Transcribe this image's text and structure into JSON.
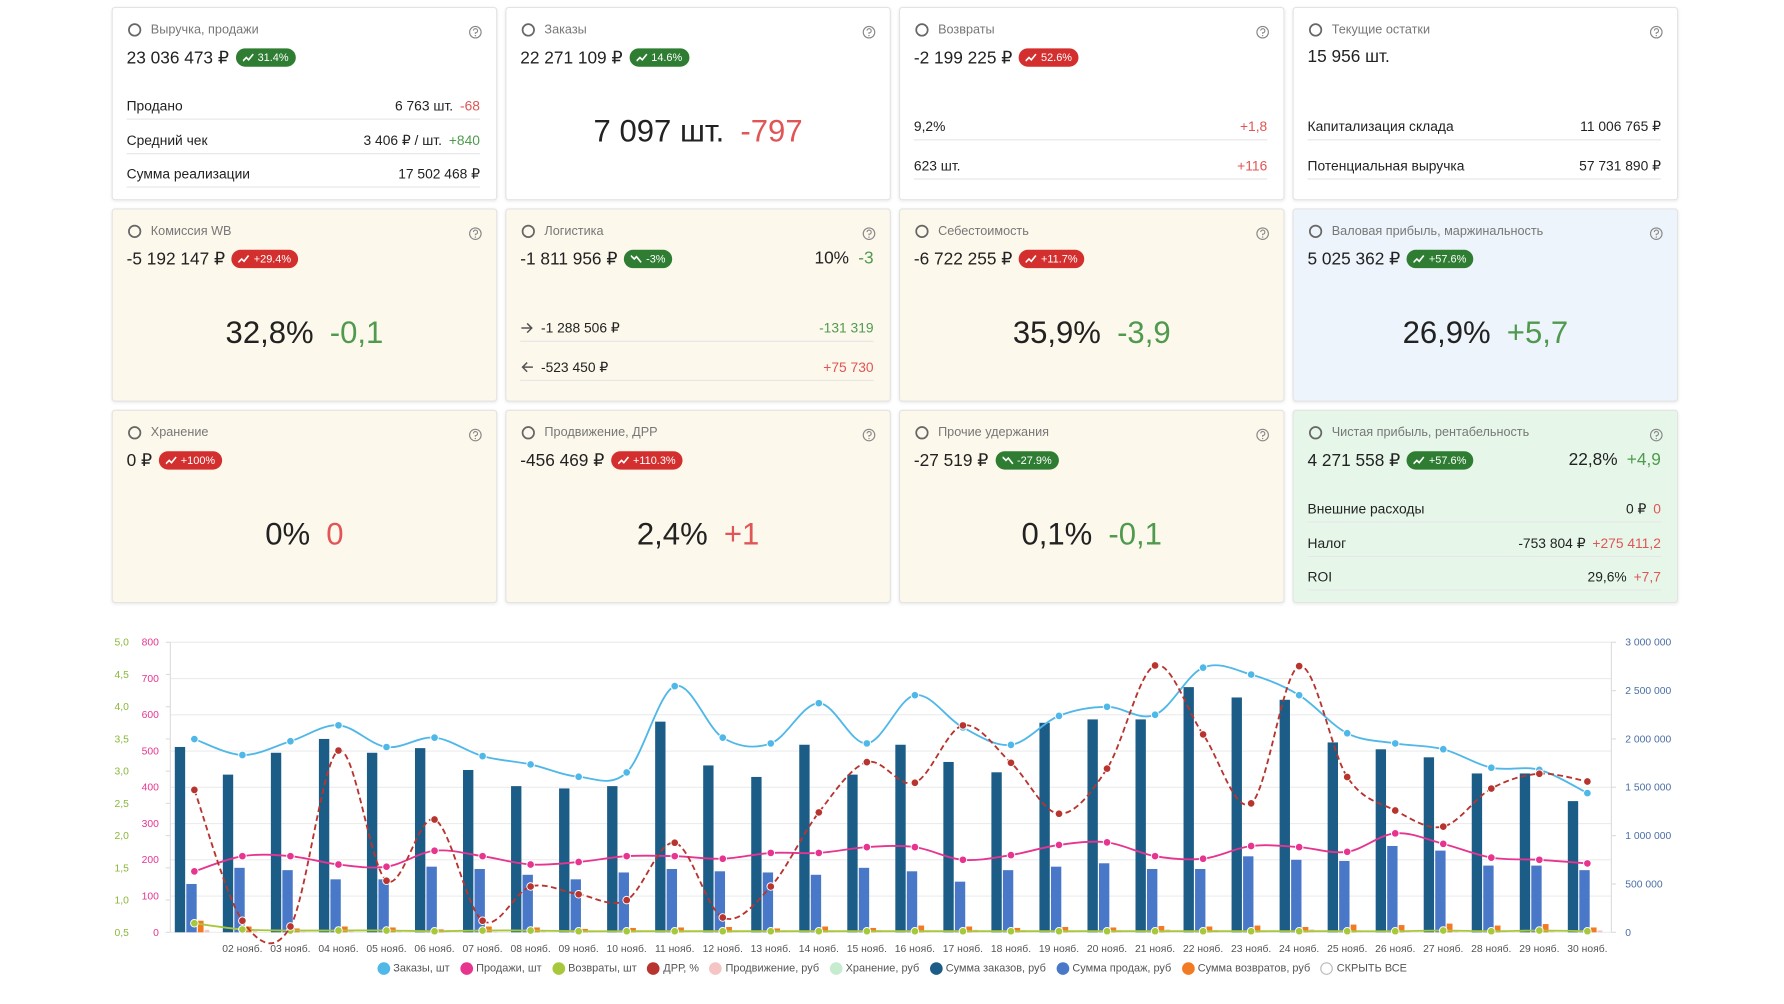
{
  "cards": [
    {
      "title": "Выручка, продажи",
      "value": "23 036 473 ₽",
      "badge": {
        "text": "31.4%",
        "tone": "green",
        "trend": "up"
      },
      "color": "#ffffff",
      "rows": [
        {
          "label": "Продано",
          "value": "6 763 шт.",
          "delta": "-68",
          "tone": "red"
        },
        {
          "label": "Средний чек",
          "value": "3 406 ₽ / шт.",
          "delta": "+840",
          "tone": "green"
        },
        {
          "label": "Сумма реализации",
          "value": "17 502 468 ₽"
        }
      ]
    },
    {
      "title": "Заказы",
      "value": "22 271 109 ₽",
      "badge": {
        "text": "14.6%",
        "tone": "green",
        "trend": "up"
      },
      "color": "#ffffff",
      "big": {
        "value": "7 097 шт.",
        "delta": "-797",
        "tone": "red"
      }
    },
    {
      "title": "Возвраты",
      "value": "-2 199 225 ₽",
      "badge": {
        "text": "52.6%",
        "tone": "red",
        "trend": "up"
      },
      "color": "#ffffff",
      "rows": [
        {
          "label": "9,2%",
          "delta": "+1,8",
          "tone": "red"
        },
        {
          "label": "623 шт.",
          "delta": "+116",
          "tone": "red"
        }
      ]
    },
    {
      "title": "Текущие остатки",
      "value": "15 956 шт.",
      "color": "#ffffff",
      "rows": [
        {
          "label": "Капитализация склада",
          "value": "11 006 765 ₽"
        },
        {
          "label": "Потенциальная выручка",
          "value": "57 731 890 ₽"
        }
      ]
    },
    {
      "title": "Комиссия WB",
      "value": "-5 192 147 ₽",
      "badge": {
        "text": "+29.4%",
        "tone": "red",
        "trend": "up"
      },
      "color": "#fdf8ec",
      "big": {
        "value": "32,8%",
        "delta": "-0,1",
        "tone": "green"
      }
    },
    {
      "title": "Логистика",
      "value": "-1 811 956 ₽",
      "badge": {
        "text": "-3%",
        "tone": "green",
        "trend": "down"
      },
      "color": "#fdf8ec",
      "side": {
        "value": "10%",
        "delta": "-3",
        "tone": "green"
      },
      "rows": [
        {
          "label": "-1 288 506 ₽",
          "arrow": "right",
          "delta": "-131 319",
          "tone": "green"
        },
        {
          "label": "-523 450 ₽",
          "arrow": "left",
          "delta": "+75 730",
          "tone": "red"
        }
      ]
    },
    {
      "title": "Себестоимость",
      "value": "-6 722 255 ₽",
      "badge": {
        "text": "+11.7%",
        "tone": "red",
        "trend": "up"
      },
      "color": "#fdf8ec",
      "big": {
        "value": "35,9%",
        "delta": "-3,9",
        "tone": "green"
      }
    },
    {
      "title": "Валовая прибыль, маржинальность",
      "value": "5 025 362 ₽",
      "badge": {
        "text": "+57.6%",
        "tone": "green",
        "trend": "up"
      },
      "color": "#eef4fb",
      "big": {
        "value": "26,9%",
        "delta": "+5,7",
        "tone": "green"
      }
    },
    {
      "title": "Хранение",
      "value": "0 ₽",
      "badge": {
        "text": "+100%",
        "tone": "red",
        "trend": "up"
      },
      "color": "#fdf8ec",
      "big": {
        "value": "0%",
        "delta": "0",
        "tone": "red"
      }
    },
    {
      "title": "Продвижение, ДРР",
      "value": "-456 469 ₽",
      "badge": {
        "text": "+110.3%",
        "tone": "red",
        "trend": "up"
      },
      "color": "#fdf8ec",
      "big": {
        "value": "2,4%",
        "delta": "+1",
        "tone": "red"
      }
    },
    {
      "title": "Прочие удержания",
      "value": "-27 519 ₽",
      "badge": {
        "text": "-27.9%",
        "tone": "green",
        "trend": "down"
      },
      "color": "#fdf8ec",
      "big": {
        "value": "0,1%",
        "delta": "-0,1",
        "tone": "green"
      }
    },
    {
      "title": "Чистая прибыль, рентабельность",
      "value": "4 271 558 ₽",
      "badge": {
        "text": "+57.6%",
        "tone": "green",
        "trend": "up"
      },
      "color": "#e6f7ea",
      "side": {
        "value": "22,8%",
        "delta": "+4,9",
        "tone": "green"
      },
      "rows": [
        {
          "label": "Внешние расходы",
          "value": "0 ₽",
          "delta": "0",
          "tone": "red"
        },
        {
          "label": "Налог",
          "value": "-753 804 ₽",
          "delta": "+275 411,2",
          "tone": "red"
        },
        {
          "label": "ROI",
          "value": "29,6%",
          "delta": "+7,7",
          "tone": "red"
        }
      ]
    }
  ],
  "chart_data": {
    "type": "combo",
    "grid": true,
    "categories": [
      null,
      "02 нояб.",
      "03 нояб.",
      "04 нояб.",
      "05 нояб.",
      "06 нояб.",
      "07 нояб.",
      "08 нояб.",
      "09 нояб.",
      "10 нояб.",
      "11 нояб.",
      "12 нояб.",
      "13 нояб.",
      "14 нояб.",
      "15 нояб.",
      "16 нояб.",
      "17 нояб.",
      "18 нояб.",
      "19 нояб.",
      "20 нояб.",
      "21 нояб.",
      "22 нояб.",
      "23 нояб.",
      "24 нояб.",
      "25 нояб.",
      "26 нояб.",
      "27 нояб.",
      "28 нояб.",
      "29 нояб.",
      "30 нояб."
    ],
    "ylim": [
      0,
      800
    ],
    "yticks": [
      0,
      100,
      200,
      300,
      400,
      500,
      600,
      700,
      800
    ],
    "y2lim": [
      0,
      3000000
    ],
    "y2ticks": [
      0,
      {
        "value": 500000,
        "label": "500 000"
      },
      {
        "value": 1000000,
        "label": "1 000 000"
      },
      {
        "value": 1500000,
        "label": "1 500 000"
      },
      {
        "value": 2000000,
        "label": "2 000 000"
      },
      {
        "value": 2500000,
        "label": "2 500 000"
      },
      {
        "value": 3000000,
        "label": "3 000 000"
      }
    ],
    "y3lim": [
      0.5,
      5.0
    ],
    "y3ticks": [
      {
        "value": 0.5,
        "label": "0,5"
      },
      {
        "value": 1,
        "label": "1,0"
      },
      {
        "value": 1.5,
        "label": "1,5"
      },
      {
        "value": 2,
        "label": "2,0"
      },
      {
        "value": 2.5,
        "label": "2,5"
      },
      {
        "value": 3,
        "label": "3,0"
      },
      {
        "value": 3.5,
        "label": "3,5"
      },
      {
        "value": 4,
        "label": "4,0"
      },
      {
        "value": 4.5,
        "label": "4,5"
      },
      {
        "value": 5,
        "label": "5,0"
      }
    ],
    "series": [
      {
        "name": "Заказы, шт",
        "color": "#4fb8e8",
        "kind": "line",
        "axis": "y",
        "values": [
          533,
          489,
          527,
          571,
          511,
          537,
          486,
          463,
          429,
          441,
          679,
          537,
          521,
          632,
          521,
          654,
          565,
          517,
          597,
          622,
          600,
          730,
          711,
          654,
          549,
          521,
          505,
          454,
          448,
          384
        ]
      },
      {
        "name": "Продажи, шт",
        "color": "#e6348f",
        "kind": "line",
        "axis": "y",
        "values": [
          168,
          210,
          210,
          187,
          181,
          225,
          210,
          187,
          194,
          210,
          210,
          203,
          219,
          219,
          235,
          235,
          200,
          213,
          241,
          248,
          210,
          203,
          238,
          235,
          222,
          273,
          244,
          206,
          200,
          190
        ]
      },
      {
        "name": "Возвраты, шт",
        "color": "#a8c83c",
        "kind": "line",
        "axis": "y",
        "values": [
          25,
          8,
          5,
          5,
          5,
          3,
          5,
          5,
          3,
          3,
          3,
          3,
          3,
          3,
          3,
          3,
          3,
          3,
          3,
          3,
          3,
          3,
          3,
          3,
          3,
          3,
          5,
          3,
          5,
          3
        ]
      },
      {
        "name": "ДРР, %",
        "color": "#b8342e",
        "kind": "line",
        "axis": "y3",
        "dashed": true,
        "values": [
          2.71,
          0.68,
          0.59,
          3.32,
          1.3,
          2.25,
          0.68,
          1.21,
          1.09,
          1.0,
          1.89,
          0.73,
          1.21,
          2.36,
          3.14,
          2.82,
          3.71,
          3.13,
          2.34,
          3.04,
          4.64,
          3.57,
          2.5,
          4.63,
          2.91,
          2.39,
          2.14,
          2.73,
          2.96,
          2.84
        ]
      },
      {
        "name": "Продвижение, руб",
        "color": "#f5c4c4",
        "kind": "bar",
        "axis": "y2",
        "values": [
          25000,
          12000,
          6000,
          18000,
          9000,
          15000,
          6000,
          9000,
          8000,
          7000,
          14000,
          5000,
          9000,
          17000,
          22000,
          20000,
          26000,
          22000,
          17000,
          21000,
          30000,
          24000,
          18000,
          30000,
          20000,
          17000,
          15000,
          19000,
          20000,
          19000
        ]
      },
      {
        "name": "Хранение, руб",
        "color": "#c6ebcf",
        "kind": "bar",
        "axis": "y2",
        "values": [
          0,
          0,
          0,
          0,
          0,
          0,
          0,
          0,
          0,
          0,
          0,
          0,
          0,
          0,
          0,
          0,
          0,
          0,
          0,
          0,
          0,
          0,
          0,
          0,
          0,
          0,
          0,
          0,
          0,
          0
        ]
      },
      {
        "name": "Сумма заказов, руб",
        "color": "#1c5d87",
        "kind": "bar",
        "axis": "y2",
        "values": [
          1917000,
          1631000,
          1857000,
          2000000,
          1857000,
          1905000,
          1679000,
          1512000,
          1488000,
          1512000,
          2179000,
          1726000,
          1607000,
          1940000,
          1631000,
          1940000,
          1762000,
          1655000,
          2167000,
          2202000,
          2202000,
          2536000,
          2429000,
          2405000,
          1964000,
          1893000,
          1810000,
          1643000,
          1643000,
          1357000
        ]
      },
      {
        "name": "Сумма продаж, руб",
        "color": "#4a78c8",
        "kind": "bar",
        "axis": "y2",
        "values": [
          500000,
          667000,
          643000,
          548000,
          548000,
          679000,
          655000,
          595000,
          548000,
          619000,
          655000,
          631000,
          619000,
          595000,
          667000,
          631000,
          524000,
          643000,
          679000,
          714000,
          655000,
          655000,
          786000,
          750000,
          738000,
          893000,
          845000,
          690000,
          690000,
          643000
        ]
      },
      {
        "name": "Сумма возвратов, руб",
        "color": "#f27a22",
        "kind": "bar",
        "axis": "y2",
        "values": [
          120000,
          60000,
          40000,
          60000,
          50000,
          30000,
          60000,
          50000,
          35000,
          45000,
          50000,
          55000,
          40000,
          60000,
          45000,
          70000,
          60000,
          45000,
          55000,
          50000,
          65000,
          60000,
          70000,
          55000,
          80000,
          75000,
          90000,
          70000,
          85000,
          50000
        ]
      }
    ],
    "hide_all_label": "СКРЫТЬ ВСЕ"
  }
}
